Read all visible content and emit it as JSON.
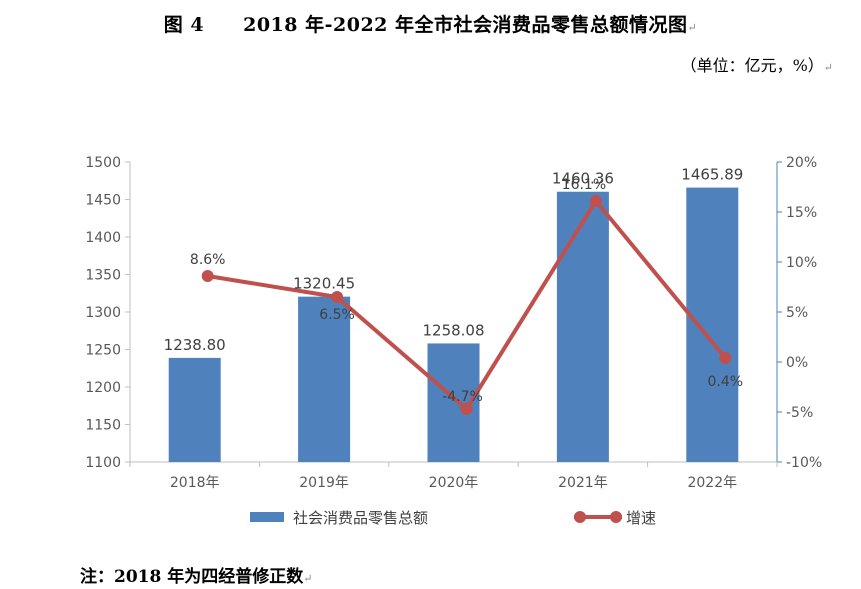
{
  "title": "图 4　　2018 年-2022 年全市社会消费品零售总额情况图",
  "unit_note": "（单位：亿元，%）",
  "footnote": "注：2018 年为四经普修正数",
  "colors": {
    "bar": "#4f81bd",
    "line": "#c0504d",
    "axis": "#bfbfbf",
    "right_axis": "#4f81bd"
  },
  "chart_data": {
    "type": "bar+line",
    "categories": [
      "2018年",
      "2019年",
      "2020年",
      "2021年",
      "2022年"
    ],
    "series": [
      {
        "name": "社会消费品零售总额",
        "type": "bar",
        "axis": "left",
        "values": [
          1238.8,
          1320.45,
          1258.08,
          1460.36,
          1465.89
        ],
        "labels": [
          "1238.80",
          "1320.45",
          "1258.08",
          "1460.36",
          "1465.89"
        ]
      },
      {
        "name": "增速",
        "type": "line",
        "axis": "right",
        "values": [
          8.6,
          6.5,
          -4.7,
          16.1,
          0.4
        ],
        "labels": [
          "8.6%",
          "6.5%",
          "-4.7%",
          "16.1%",
          "0.4%"
        ]
      }
    ],
    "y_left": {
      "min": 1100,
      "max": 1500,
      "step": 50,
      "ticks": [
        "1100",
        "1150",
        "1200",
        "1250",
        "1300",
        "1350",
        "1400",
        "1450",
        "1500"
      ]
    },
    "y_right": {
      "min": -10,
      "max": 20,
      "step": 5,
      "ticks": [
        "-10%",
        "-5%",
        "0%",
        "5%",
        "10%",
        "15%",
        "20%"
      ]
    },
    "grid": false,
    "legend": "bottom"
  }
}
